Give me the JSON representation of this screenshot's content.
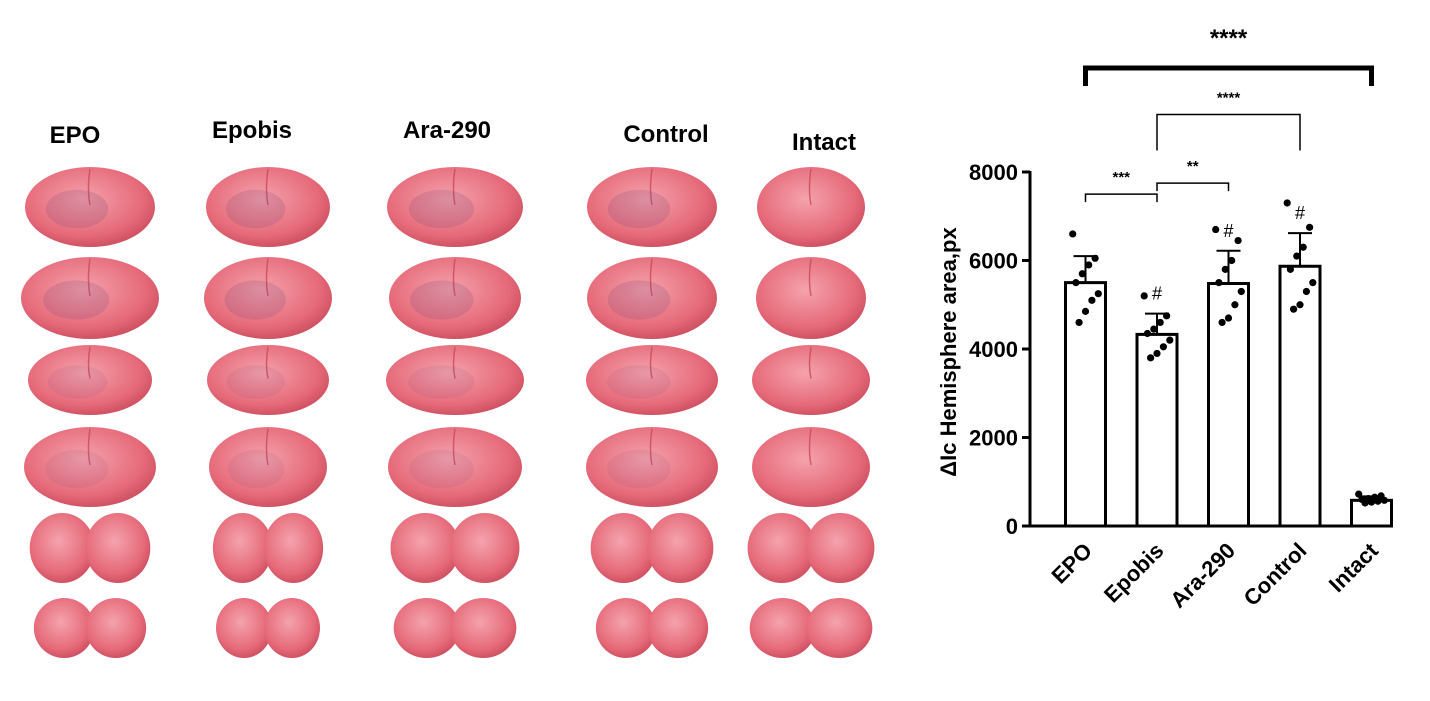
{
  "photo_panel": {
    "columns": [
      {
        "label": "EPO"
      },
      {
        "label": "Epobis"
      },
      {
        "label": "Ara-290"
      },
      {
        "label": "Control"
      },
      {
        "label": "Intact"
      }
    ],
    "rows": 6,
    "tissue_color": "#e66a79",
    "tissue_light": "#f4a3ad",
    "tissue_dark": "#c94a5b",
    "lesion_color": "#8a4a78"
  },
  "chart_data": {
    "type": "bar",
    "categories": [
      "EPO",
      "Epobis",
      "Ara-290",
      "Control",
      "Intact"
    ],
    "values": [
      5500,
      4330,
      5480,
      5870,
      580
    ],
    "errors": [
      600,
      470,
      740,
      750,
      90
    ],
    "points": [
      [
        6600,
        6050,
        5900,
        5700,
        5500,
        5250,
        5100,
        4850,
        4600
      ],
      [
        5200,
        4750,
        4600,
        4450,
        4350,
        4200,
        4050,
        3900,
        3800
      ],
      [
        6700,
        6450,
        6000,
        5800,
        5500,
        5300,
        5000,
        4700,
        4600
      ],
      [
        7300,
        6750,
        6300,
        6100,
        5800,
        5500,
        5300,
        5000,
        4900
      ],
      [
        720,
        680,
        650,
        620,
        600,
        580,
        560,
        540,
        520
      ]
    ],
    "ylabel": "ΔIc Hemisphere area,px",
    "xlabel": "",
    "ylim": [
      0,
      8000
    ],
    "yticks": [
      0,
      2000,
      4000,
      6000,
      8000
    ],
    "hash_markers": [
      "",
      "#",
      "#",
      "#",
      ""
    ],
    "hash_symbol": "#",
    "brackets": [
      {
        "from": 0,
        "to": 4,
        "y": 10350,
        "label": "****"
      },
      {
        "from": 1,
        "to": 3,
        "y": 9300,
        "label": "****"
      },
      {
        "from": 0,
        "to": 1,
        "y": 7500,
        "label": "***"
      },
      {
        "from": 1,
        "to": 2,
        "y": 7750,
        "label": "**"
      }
    ]
  }
}
